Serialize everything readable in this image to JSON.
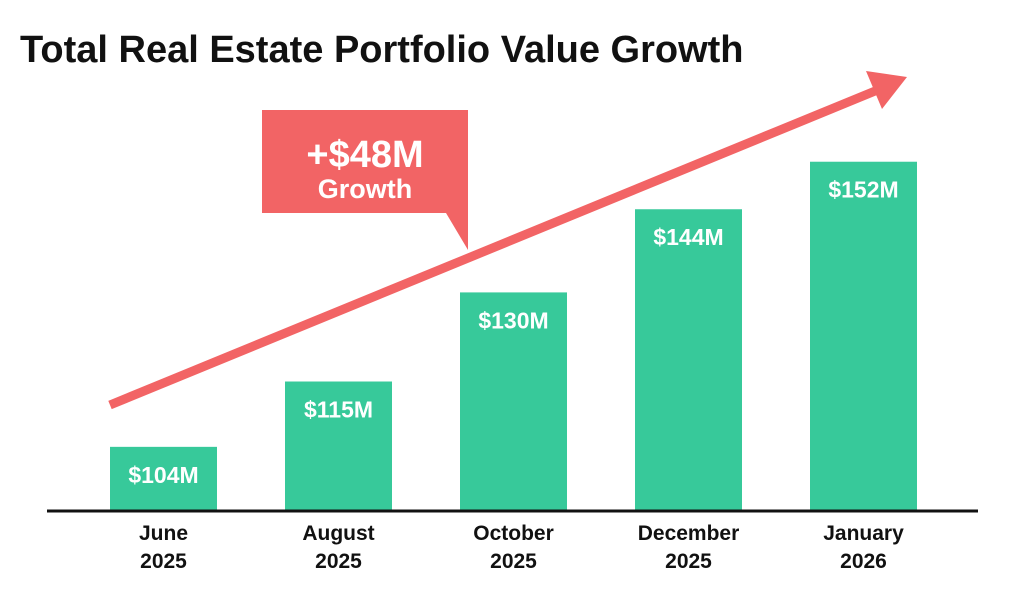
{
  "chart_data": {
    "type": "bar",
    "title": "Total Real Estate Portfolio Value Growth",
    "categories": [
      [
        "June",
        "2025"
      ],
      [
        "August",
        "2025"
      ],
      [
        "October",
        "2025"
      ],
      [
        "December",
        "2025"
      ],
      [
        "January",
        "2026"
      ]
    ],
    "values": [
      104,
      115,
      130,
      144,
      152
    ],
    "data_labels": [
      "$104M",
      "$115M",
      "$130M",
      "$144M",
      "$152M"
    ],
    "unit": "$M",
    "xlabel": "",
    "ylabel": "",
    "grid": false,
    "y_axis_visible": false,
    "annotation": {
      "line1": "+$48M",
      "line2": "Growth"
    },
    "colors": {
      "bar": "#37c99a",
      "arrow": "#f26465",
      "callout": "#f26465",
      "axis": "#111111"
    }
  }
}
